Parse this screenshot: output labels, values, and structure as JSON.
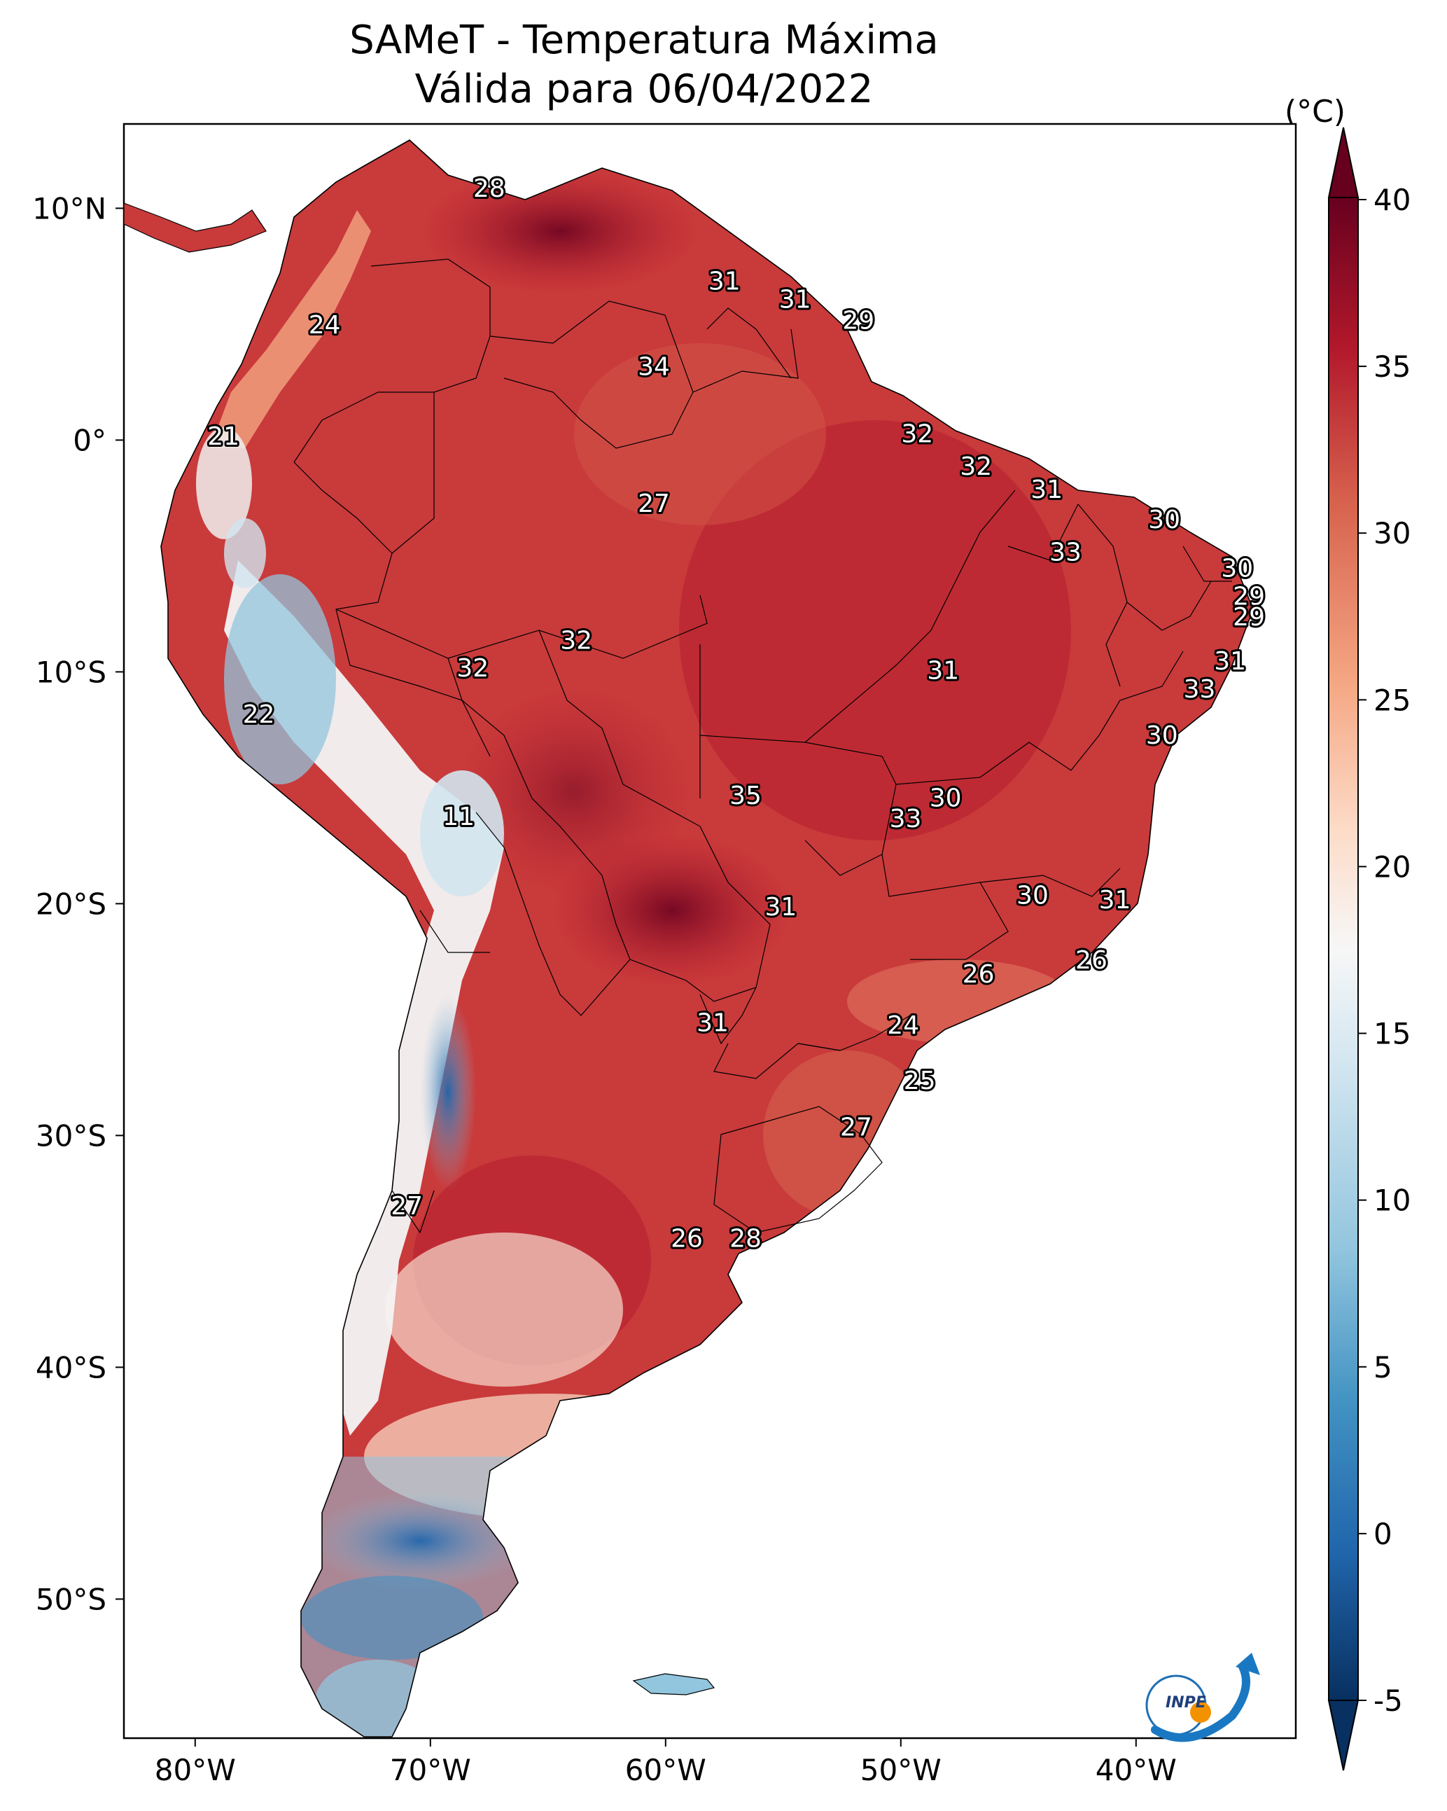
{
  "title": "SAMeT - Temperatura Máxima",
  "subtitle": "Válida para 06/04/2022",
  "colorbar": {
    "unit": "(°C)",
    "ticks": [
      "40",
      "35",
      "30",
      "25",
      "20",
      "15",
      "10",
      "5",
      "0",
      "-5"
    ],
    "range": [
      -5,
      40
    ],
    "colormap": [
      "#083060",
      "#2166ac",
      "#4393c3",
      "#92c5de",
      "#d1e5f0",
      "#f7f7f7",
      "#fddbc7",
      "#f4a582",
      "#d6604d",
      "#b2182b",
      "#67001f"
    ]
  },
  "axes": {
    "lon_labels": [
      "80°W",
      "70°W",
      "60°W",
      "50°W",
      "40°W"
    ],
    "lat_labels": [
      "10°N",
      "0°",
      "10°S",
      "20°S",
      "30°S",
      "40°S",
      "50°S"
    ]
  },
  "temperature_labels": [
    {
      "text": "28",
      "lon": -67.5,
      "lat": 10.5
    },
    {
      "text": "31",
      "lon": -57.5,
      "lat": 6.5
    },
    {
      "text": "31",
      "lon": -54.5,
      "lat": 5.7
    },
    {
      "text": "29",
      "lon": -51.8,
      "lat": 4.8
    },
    {
      "text": "24",
      "lon": -74.5,
      "lat": 4.6
    },
    {
      "text": "34",
      "lon": -60.5,
      "lat": 2.8
    },
    {
      "text": "21",
      "lon": -78.8,
      "lat": -0.2
    },
    {
      "text": "32",
      "lon": -49.3,
      "lat": -0.1
    },
    {
      "text": "32",
      "lon": -46.8,
      "lat": -1.5
    },
    {
      "text": "27",
      "lon": -60.5,
      "lat": -3.1
    },
    {
      "text": "31",
      "lon": -43.8,
      "lat": -2.5
    },
    {
      "text": "30",
      "lon": -38.8,
      "lat": -3.8
    },
    {
      "text": "33",
      "lon": -43.0,
      "lat": -5.2
    },
    {
      "text": "30",
      "lon": -35.7,
      "lat": -5.9
    },
    {
      "text": "29",
      "lon": -35.2,
      "lat": -7.1
    },
    {
      "text": "29",
      "lon": -35.2,
      "lat": -8.0
    },
    {
      "text": "32",
      "lon": -63.8,
      "lat": -9.0
    },
    {
      "text": "32",
      "lon": -68.2,
      "lat": -10.2
    },
    {
      "text": "31",
      "lon": -48.2,
      "lat": -10.3
    },
    {
      "text": "31",
      "lon": -36.0,
      "lat": -9.9
    },
    {
      "text": "33",
      "lon": -37.3,
      "lat": -11.1
    },
    {
      "text": "22",
      "lon": -77.3,
      "lat": -12.2
    },
    {
      "text": "30",
      "lon": -38.9,
      "lat": -13.1
    },
    {
      "text": "35",
      "lon": -56.6,
      "lat": -15.7
    },
    {
      "text": "30",
      "lon": -48.1,
      "lat": -15.8
    },
    {
      "text": "33",
      "lon": -49.8,
      "lat": -16.7
    },
    {
      "text": "11",
      "lon": -68.8,
      "lat": -16.6
    },
    {
      "text": "30",
      "lon": -44.4,
      "lat": -20.0
    },
    {
      "text": "31",
      "lon": -40.9,
      "lat": -20.2
    },
    {
      "text": "31",
      "lon": -55.1,
      "lat": -20.5
    },
    {
      "text": "26",
      "lon": -41.9,
      "lat": -22.8
    },
    {
      "text": "26",
      "lon": -46.7,
      "lat": -23.4
    },
    {
      "text": "31",
      "lon": -58.0,
      "lat": -25.5
    },
    {
      "text": "24",
      "lon": -49.9,
      "lat": -25.6
    },
    {
      "text": "25",
      "lon": -49.2,
      "lat": -28.0
    },
    {
      "text": "27",
      "lon": -51.9,
      "lat": -30.0
    },
    {
      "text": "27",
      "lon": -71.0,
      "lat": -33.4
    },
    {
      "text": "26",
      "lon": -59.1,
      "lat": -34.8
    },
    {
      "text": "28",
      "lon": -56.6,
      "lat": -34.8
    }
  ],
  "logo": {
    "text": "INPE"
  },
  "colors": {
    "hot": "#b2182b",
    "very_hot": "#67001f",
    "warm": "#d6604d",
    "mild": "#f4a582",
    "cool": "#f7f7f7",
    "cold": "#4393c3",
    "very_cold": "#2166ac"
  }
}
